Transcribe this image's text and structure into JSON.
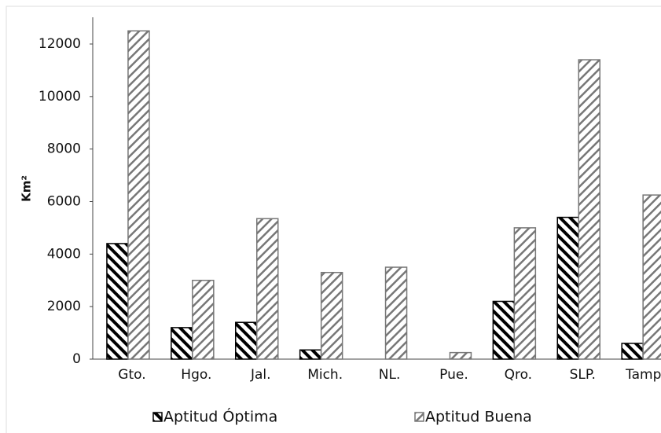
{
  "chart_data": {
    "type": "bar",
    "y_label": "Km²",
    "categories": [
      "Gto.",
      "Hgo.",
      "Jal.",
      "Mich.",
      "NL.",
      "Pue.",
      "Qro.",
      "SLP.",
      "Tamps"
    ],
    "series": [
      {
        "name": "Aptitud Óptima",
        "color": "#000000",
        "values": [
          4400,
          1200,
          1400,
          350,
          0,
          0,
          2200,
          5400,
          600
        ]
      },
      {
        "name": "Aptitud Buena",
        "color": "#777777",
        "values": [
          12500,
          3000,
          5350,
          3300,
          3500,
          250,
          5000,
          11400,
          6250
        ]
      }
    ],
    "ylim": [
      0,
      12000
    ],
    "yticks": [
      0,
      2000,
      4000,
      6000,
      8000,
      10000,
      12000
    ],
    "grid": false,
    "legend": "bottom"
  }
}
